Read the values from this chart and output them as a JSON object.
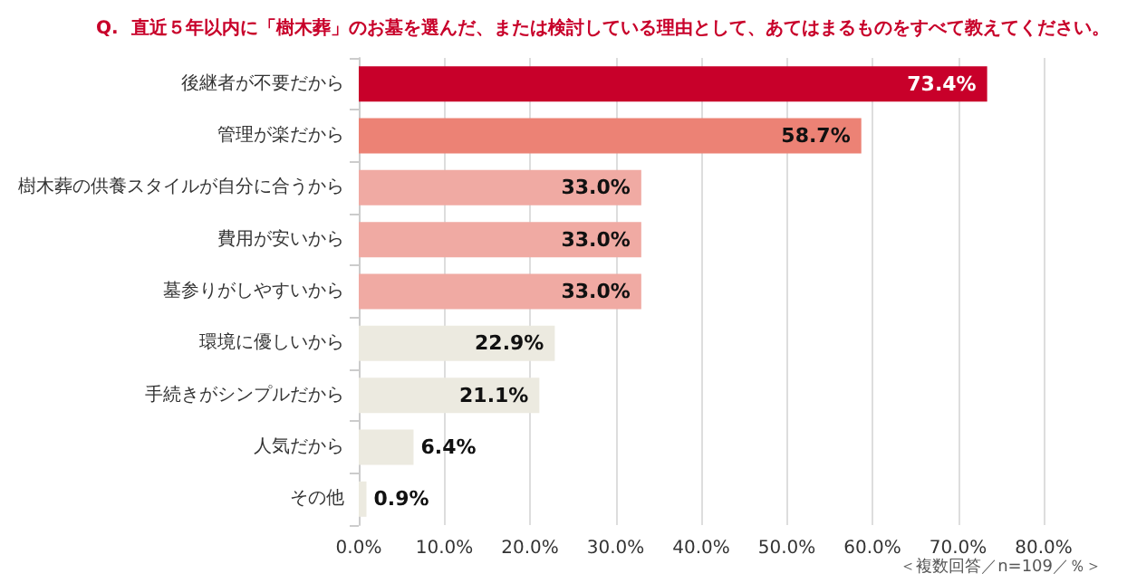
{
  "chart_data": {
    "type": "bar",
    "orientation": "horizontal",
    "title": "Q.  直近５年以内に「樹木葬」のお墓を選んだ、または検討している理由として、あてはまるものをすべて教えてください。",
    "categories": [
      "後継者が不要だから",
      "管理が楽だから",
      "樹木葬の供養スタイルが自分に合うから",
      "費用が安いから",
      "墓参りがしやすいから",
      "環境に優しいから",
      "手続きがシンプルだから",
      "人気だから",
      "その他"
    ],
    "values": [
      73.4,
      58.7,
      33.0,
      33.0,
      33.0,
      22.9,
      21.1,
      6.4,
      0.9
    ],
    "value_labels": [
      "73.4%",
      "58.7%",
      "33.0%",
      "33.0%",
      "33.0%",
      "22.9%",
      "21.1%",
      "6.4%",
      "0.9%"
    ],
    "colors": [
      "#c8002a",
      "#ec8275",
      "#f0aaa3",
      "#f0aaa3",
      "#f0aaa3",
      "#eceae0",
      "#eceae0",
      "#eceae0",
      "#eceae0"
    ],
    "xlim": [
      0,
      80
    ],
    "xticks": [
      {
        "value": 0,
        "label": "0.0%"
      },
      {
        "value": 10,
        "label": "10.0%"
      },
      {
        "value": 20,
        "label": "20.0%"
      },
      {
        "value": 30,
        "label": "30.0%"
      },
      {
        "value": 40,
        "label": "40.0%"
      },
      {
        "value": 50,
        "label": "50.0%"
      },
      {
        "value": 60,
        "label": "60.0%"
      },
      {
        "value": 70,
        "label": "70.0%"
      },
      {
        "value": 80,
        "label": "80.0%"
      }
    ],
    "grid": "x",
    "annotations": [
      "＜複数回答／n=109／％＞"
    ]
  }
}
